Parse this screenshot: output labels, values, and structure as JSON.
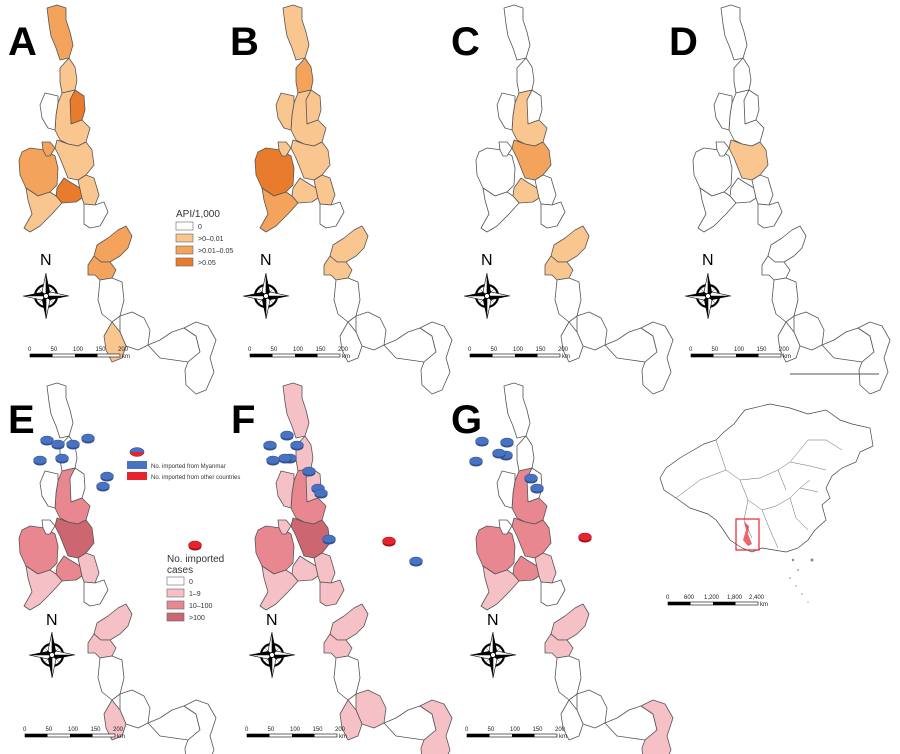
{
  "colors": {
    "api": [
      "#ffffff",
      "#f9c690",
      "#f3a35c",
      "#e97b2c"
    ],
    "imported": [
      "#ffffff",
      "#f6c1c6",
      "#e98791",
      "#cc6670"
    ],
    "myanmar_marker": "#4a72c2",
    "other_marker": "#e8232e",
    "border": "#555555"
  },
  "panels": [
    {
      "letter": "A",
      "kind": "api",
      "classes": [
        2,
        1,
        3,
        1,
        0,
        2,
        2,
        1,
        3,
        1,
        1,
        0,
        2,
        2,
        0,
        0,
        0,
        0,
        1
      ],
      "markers": []
    },
    {
      "letter": "B",
      "kind": "api",
      "classes": [
        1,
        2,
        1,
        1,
        1,
        3,
        1,
        1,
        1,
        1,
        2,
        0,
        1,
        1,
        0,
        0,
        0,
        0,
        0
      ],
      "markers": []
    },
    {
      "letter": "C",
      "kind": "api",
      "classes": [
        0,
        0,
        0,
        1,
        0,
        0,
        0,
        2,
        1,
        0,
        0,
        0,
        1,
        1,
        0,
        0,
        0,
        0,
        0
      ],
      "markers": []
    },
    {
      "letter": "D",
      "kind": "api",
      "classes": [
        0,
        0,
        0,
        0,
        0,
        0,
        0,
        1,
        0,
        0,
        0,
        0,
        0,
        0,
        0,
        0,
        0,
        0,
        0
      ],
      "markers": []
    },
    {
      "letter": "E",
      "kind": "imported",
      "classes": [
        0,
        0,
        0,
        2,
        0,
        2,
        0,
        3,
        2,
        1,
        1,
        0,
        1,
        1,
        0,
        0,
        0,
        0,
        1
      ],
      "markers": [
        [
          "m",
          62,
          80
        ],
        [
          "m",
          47,
          62
        ],
        [
          "m",
          73,
          66
        ],
        [
          "m",
          58,
          66
        ],
        [
          "m",
          88,
          60
        ],
        [
          "m",
          40,
          82
        ],
        [
          "m",
          107,
          98
        ],
        [
          "m",
          103,
          108
        ],
        [
          "o",
          195,
          167
        ]
      ]
    },
    {
      "letter": "F",
      "kind": "imported",
      "classes": [
        1,
        1,
        1,
        2,
        1,
        2,
        1,
        3,
        1,
        1,
        1,
        1,
        1,
        1,
        0,
        1,
        0,
        1,
        1
      ],
      "markers": [
        [
          "m",
          287,
          57
        ],
        [
          "m",
          290,
          80
        ],
        [
          "m",
          270,
          67
        ],
        [
          "m",
          297,
          67
        ],
        [
          "m",
          285,
          80
        ],
        [
          "m",
          273,
          82
        ],
        [
          "m",
          309,
          93
        ],
        [
          "m",
          318,
          110
        ],
        [
          "m",
          321,
          115
        ],
        [
          "m",
          329,
          161
        ],
        [
          "o",
          389,
          163
        ],
        [
          "m",
          416,
          183
        ]
      ]
    },
    {
      "letter": "G",
      "kind": "imported",
      "classes": [
        0,
        0,
        0,
        2,
        0,
        2,
        0,
        2,
        2,
        1,
        1,
        0,
        1,
        1,
        0,
        0,
        0,
        1,
        0
      ],
      "markers": [
        [
          "m",
          506,
          77
        ],
        [
          "m",
          482,
          63
        ],
        [
          "m",
          507,
          64
        ],
        [
          "m",
          499,
          75
        ],
        [
          "m",
          476,
          83
        ],
        [
          "m",
          531,
          100
        ],
        [
          "m",
          537,
          110
        ],
        [
          "o",
          585,
          159
        ]
      ]
    }
  ],
  "letters": [
    "A",
    "B",
    "C",
    "D",
    "E",
    "F",
    "G"
  ],
  "api_legend": {
    "title": "API/1,000",
    "items": [
      "0",
      ">0–0.01",
      ">0.01–0.05",
      ">0.05"
    ]
  },
  "imported_legend": {
    "title_line1": "No. imported",
    "title_line2": "cases",
    "items": [
      "0",
      "1–9",
      "10–100",
      ">100"
    ],
    "marker_myanmar": "No. imported from Myanmar",
    "marker_other": "No. imported from other countries"
  },
  "north_label": "N",
  "scale": {
    "ticks": [
      "0",
      "50",
      "100",
      "150",
      "200"
    ],
    "unit": "km"
  },
  "china_scale": {
    "ticks": [
      "0",
      "600",
      "1,200",
      "1,800",
      "2,400"
    ],
    "unit": "km"
  }
}
